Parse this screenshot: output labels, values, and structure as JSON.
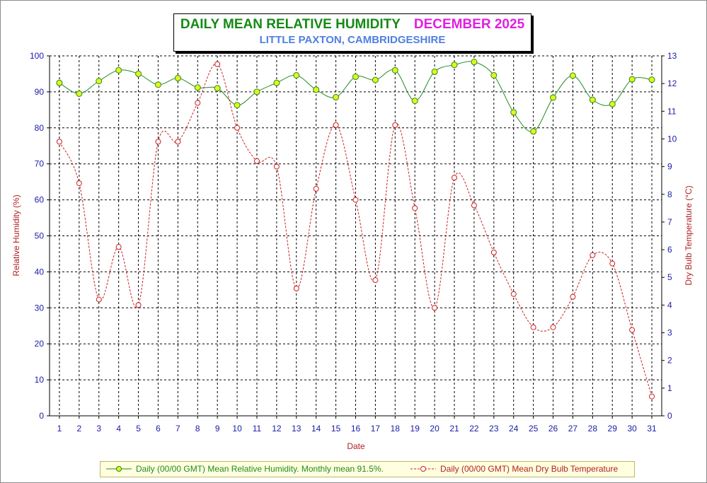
{
  "title": "DAILY MEAN RELATIVE HUMIDITY",
  "title_month": "DECEMBER 2025",
  "subtitle": "LITTLE PAXTON, CAMBRIDGESHIRE",
  "colors": {
    "rh_line": "#228b22",
    "rh_marker": "#e6f51a",
    "temp_line": "#cc2020",
    "temp_marker_fill": "#ffffff",
    "axis_text": "#1a1aa8",
    "axis_title": "#b22222",
    "title_green": "#148a14",
    "title_magenta": "#e11ee1",
    "subtitle_blue": "#4f7fe0",
    "legend_bg": "#ffffe0"
  },
  "legend": {
    "rh_label": "Daily (00/00 GMT) Mean Relative Humidity. Monthly mean 91.5%.",
    "temp_label": "Daily (00/00 GMT) Mean Dry Bulb Temperature"
  },
  "chart_data": {
    "type": "line",
    "title": "DAILY MEAN RELATIVE HUMIDITY",
    "subtitle": "LITTLE PAXTON, CAMBRIDGESHIRE",
    "xlabel": "Date",
    "ylabel": "Relative Humidity (%)",
    "y2label": "Dry Bulb Temperature (°C)",
    "x": [
      1,
      2,
      3,
      4,
      5,
      6,
      7,
      8,
      9,
      10,
      11,
      12,
      13,
      14,
      15,
      16,
      17,
      18,
      19,
      20,
      21,
      22,
      23,
      24,
      25,
      26,
      27,
      28,
      29,
      30,
      31
    ],
    "ylim": [
      0,
      100
    ],
    "y_ticks": [
      0,
      10,
      20,
      30,
      40,
      50,
      60,
      70,
      80,
      90,
      100
    ],
    "y2lim": [
      0,
      13
    ],
    "y2_ticks": [
      0,
      1,
      2,
      3,
      4,
      5,
      6,
      7,
      8,
      9,
      10,
      11,
      12,
      13
    ],
    "grid": true,
    "legend_position": "bottom",
    "series": [
      {
        "name": "Daily (00/00 GMT) Mean Relative Humidity. Monthly mean 91.5%.",
        "axis": "left",
        "style": "solid",
        "values": [
          92.5,
          89.5,
          93.0,
          96.0,
          95.0,
          92.0,
          93.8,
          91.2,
          91.0,
          86.3,
          90.0,
          92.5,
          94.6,
          90.6,
          88.5,
          94.2,
          93.3,
          96.0,
          87.5,
          95.6,
          97.5,
          98.3,
          94.6,
          84.3,
          79.0,
          88.4,
          94.5,
          87.8,
          86.6,
          93.5,
          93.4
        ]
      },
      {
        "name": "Daily (00/00 GMT) Mean Dry Bulb Temperature",
        "axis": "right",
        "style": "dashed",
        "values": [
          9.9,
          8.4,
          4.2,
          6.1,
          4.0,
          9.9,
          9.9,
          11.3,
          12.7,
          10.4,
          9.2,
          9.0,
          4.6,
          8.2,
          10.5,
          7.8,
          4.9,
          10.5,
          7.5,
          3.9,
          8.6,
          7.6,
          5.9,
          4.4,
          3.2,
          3.2,
          4.3,
          5.8,
          5.5,
          3.1,
          0.7
        ]
      }
    ]
  }
}
